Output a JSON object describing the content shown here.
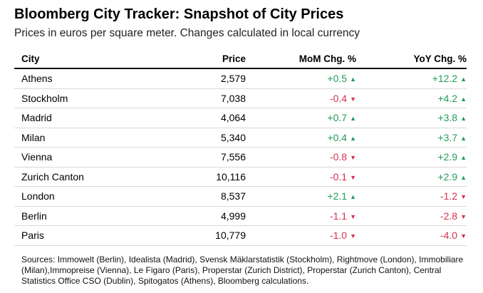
{
  "chart_data": {
    "type": "table",
    "title": "Bloomberg City Tracker: Snapshot of City Prices",
    "subtitle": "Prices in euros per square meter. Changes calculated in local currency",
    "columns": [
      "City",
      "Price",
      "MoM Chg. %",
      "YoY Chg. %"
    ],
    "rows": [
      {
        "city": "Athens",
        "price": "2,579",
        "mom": "+0.5",
        "yoy": "+12.2"
      },
      {
        "city": "Stockholm",
        "price": "7,038",
        "mom": "-0.4",
        "yoy": "+4.2"
      },
      {
        "city": "Madrid",
        "price": "4,064",
        "mom": "+0.7",
        "yoy": "+3.8"
      },
      {
        "city": "Milan",
        "price": "5,340",
        "mom": "+0.4",
        "yoy": "+3.7"
      },
      {
        "city": "Vienna",
        "price": "7,556",
        "mom": "-0.8",
        "yoy": "+2.9"
      },
      {
        "city": "Zurich Canton",
        "price": "10,116",
        "mom": "-0.1",
        "yoy": "+2.9"
      },
      {
        "city": "London",
        "price": "8,537",
        "mom": "+2.1",
        "yoy": "-1.2"
      },
      {
        "city": "Berlin",
        "price": "4,999",
        "mom": "-1.1",
        "yoy": "-2.8"
      },
      {
        "city": "Paris",
        "price": "10,779",
        "mom": "-1.0",
        "yoy": "-4.0"
      }
    ],
    "source": "Sources: Immowelt (Berlin), Idealista (Madrid), Svensk Mäklarstatistik (Stockholm), Rightmove (London), Immobiliare (Milan),Immopreise (Vienna), Le Figaro (Paris), Properstar (Zurich District), Properstar (Zurich Canton), Central Statistics Office CSO (Dublin), Spitogatos (Athens), Bloomberg calculations.",
    "colors": {
      "positive": "#1f9c5a",
      "negative": "#d6314d"
    }
  }
}
